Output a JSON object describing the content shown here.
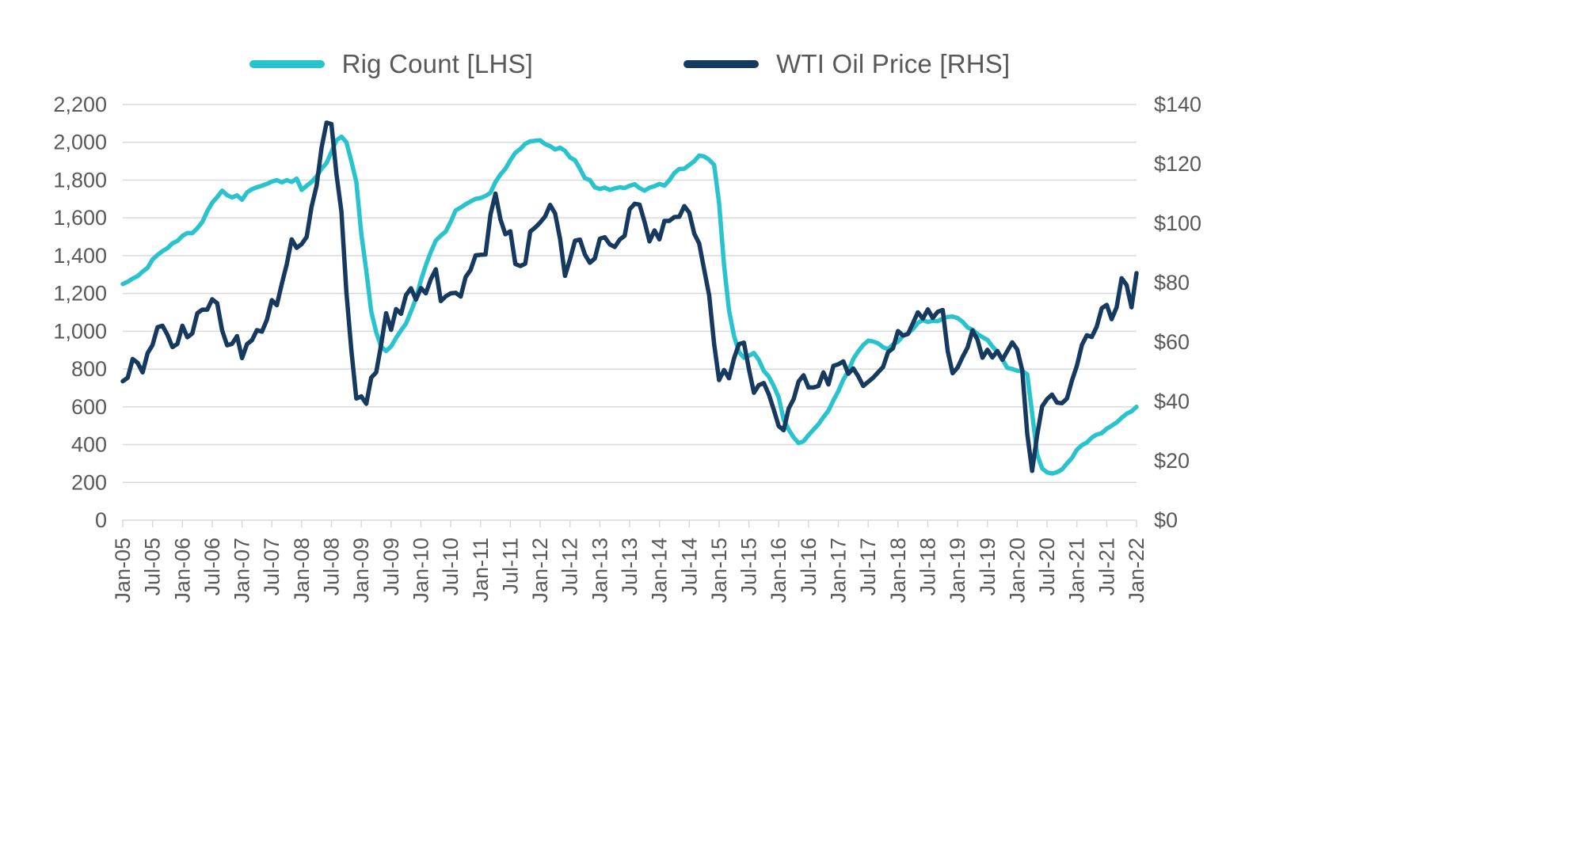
{
  "chart_data": {
    "type": "line",
    "title": "",
    "x_axis": {
      "start": "Jan-05",
      "interval": "monthly",
      "tick_every_n_points": 6,
      "tick_labels": [
        "Jan-05",
        "Jul-05",
        "Jan-06",
        "Jul-06",
        "Jan-07",
        "Jul-07",
        "Jan-08",
        "Jul-08",
        "Jan-09",
        "Jul-09",
        "Jan-10",
        "Jul-10",
        "Jan-11",
        "Jul-11",
        "Jan-12",
        "Jul-12",
        "Jan-13",
        "Jul-13",
        "Jan-14",
        "Jul-14",
        "Jan-15",
        "Jul-15",
        "Jan-16",
        "Jul-16",
        "Jan-17",
        "Jul-17",
        "Jan-18",
        "Jul-18",
        "Jan-19",
        "Jul-19",
        "Jan-20",
        "Jul-20",
        "Jan-21",
        "Jul-21",
        "Jan-22"
      ]
    },
    "left_axis": {
      "min": 0,
      "max": 2200,
      "step": 200,
      "ticks": [
        0,
        200,
        400,
        600,
        800,
        1000,
        1200,
        1400,
        1600,
        1800,
        2000,
        2200
      ],
      "tick_labels": [
        "0",
        "200",
        "400",
        "600",
        "800",
        "1,000",
        "1,200",
        "1,400",
        "1,600",
        "1,800",
        "2,000",
        "2,200"
      ]
    },
    "right_axis": {
      "min": 0,
      "max": 140,
      "step": 20,
      "ticks": [
        0,
        20,
        40,
        60,
        80,
        100,
        120,
        140
      ],
      "tick_labels": [
        "$0",
        "$20",
        "$40",
        "$60",
        "$80",
        "$100",
        "$120",
        "$140"
      ]
    },
    "grid": "horizontal",
    "legend_position": "top",
    "colors": {
      "rig_count": "#29C3CE",
      "wti": "#16395F",
      "grid": "#d9d9d9",
      "text": "#58595b"
    },
    "series": [
      {
        "name": "Rig Count [LHS]",
        "axis": "left",
        "values": [
          1250,
          1262,
          1279,
          1292,
          1316,
          1336,
          1380,
          1404,
          1424,
          1440,
          1465,
          1478,
          1505,
          1520,
          1519,
          1545,
          1578,
          1635,
          1680,
          1710,
          1744,
          1720,
          1708,
          1719,
          1696,
          1735,
          1752,
          1762,
          1770,
          1780,
          1792,
          1800,
          1788,
          1800,
          1790,
          1808,
          1748,
          1770,
          1790,
          1820,
          1860,
          1890,
          1950,
          2010,
          2030,
          2000,
          1900,
          1790,
          1515,
          1320,
          1105,
          995,
          918,
          895,
          920,
          965,
          1005,
          1040,
          1105,
          1172,
          1270,
          1350,
          1420,
          1480,
          1506,
          1528,
          1580,
          1640,
          1655,
          1672,
          1687,
          1701,
          1705,
          1716,
          1733,
          1790,
          1830,
          1860,
          1905,
          1945,
          1965,
          1992,
          2005,
          2008,
          2010,
          1990,
          1980,
          1962,
          1972,
          1955,
          1920,
          1905,
          1860,
          1810,
          1800,
          1762,
          1753,
          1760,
          1748,
          1756,
          1762,
          1758,
          1770,
          1778,
          1758,
          1744,
          1760,
          1768,
          1780,
          1770,
          1800,
          1838,
          1859,
          1860,
          1880,
          1900,
          1930,
          1925,
          1908,
          1880,
          1680,
          1350,
          1110,
          975,
          890,
          860,
          870,
          885,
          848,
          790,
          760,
          710,
          650,
          532,
          480,
          438,
          408,
          418,
          450,
          480,
          508,
          545,
          580,
          634,
          683,
          744,
          789,
          853,
          893,
          927,
          950,
          946,
          936,
          915,
          905,
          930,
          945,
          975,
          989,
          1011,
          1044,
          1059,
          1049,
          1055,
          1053,
          1067,
          1076,
          1078,
          1070,
          1050,
          1020,
          1008,
          985,
          969,
          954,
          920,
          890,
          851,
          806,
          800,
          791,
          790,
          772,
          566,
          348,
          274,
          253,
          247,
          254,
          269,
          300,
          329,
          373,
          397,
          411,
          437,
          453,
          461,
          484,
          500,
          517,
          542,
          563,
          576,
          600
        ]
      },
      {
        "name": "WTI Oil Price [RHS]",
        "axis": "right",
        "values": [
          46.8,
          48.0,
          54.3,
          53.0,
          49.8,
          56.3,
          59.0,
          65.0,
          65.5,
          62.4,
          58.3,
          59.4,
          65.5,
          61.6,
          62.9,
          69.7,
          70.9,
          70.9,
          74.4,
          73.1,
          63.9,
          58.9,
          59.4,
          62.0,
          54.6,
          59.3,
          60.6,
          64.0,
          63.5,
          67.5,
          74.1,
          72.4,
          79.6,
          86.2,
          94.6,
          91.7,
          93.0,
          95.4,
          105.6,
          112.6,
          125.4,
          133.9,
          133.4,
          116.6,
          103.9,
          76.7,
          57.4,
          41.0,
          41.7,
          39.2,
          48.0,
          49.8,
          59.2,
          69.7,
          64.1,
          71.1,
          69.5,
          75.8,
          78.1,
          74.3,
          78.2,
          76.4,
          81.2,
          84.5,
          73.8,
          75.4,
          76.4,
          76.6,
          75.3,
          81.9,
          84.3,
          89.2,
          89.4,
          89.5,
          102.9,
          110.0,
          101.3,
          96.3,
          97.3,
          86.3,
          85.6,
          86.4,
          97.2,
          98.6,
          100.3,
          102.3,
          106.2,
          103.3,
          94.7,
          82.3,
          87.9,
          94.1,
          94.5,
          89.5,
          86.7,
          88.2,
          94.8,
          95.3,
          92.9,
          92.0,
          94.5,
          95.8,
          104.7,
          106.6,
          106.3,
          100.5,
          93.9,
          97.6,
          94.6,
          100.8,
          100.8,
          102.1,
          102.2,
          105.8,
          103.6,
          96.5,
          93.2,
          84.4,
          75.8,
          59.3,
          47.2,
          50.6,
          47.8,
          54.5,
          59.3,
          59.8,
          50.9,
          42.9,
          45.5,
          46.2,
          42.4,
          37.2,
          31.7,
          30.3,
          37.6,
          40.8,
          46.7,
          48.8,
          44.7,
          44.7,
          45.2,
          49.8,
          45.7,
          52.0,
          52.5,
          53.5,
          49.3,
          51.1,
          48.5,
          45.2,
          46.6,
          48.0,
          49.8,
          51.6,
          56.6,
          57.9,
          63.7,
          62.2,
          62.7,
          66.3,
          70.0,
          67.9,
          71.0,
          68.1,
          70.2,
          70.8,
          57.0,
          49.5,
          51.4,
          55.0,
          58.2,
          63.9,
          60.8,
          54.7,
          57.4,
          54.8,
          57.0,
          54.0,
          57.0,
          59.9,
          57.5,
          50.5,
          29.2,
          16.6,
          28.6,
          38.3,
          40.8,
          42.3,
          39.6,
          39.4,
          41.0,
          47.0,
          52.0,
          59.0,
          62.3,
          61.7,
          65.2,
          71.4,
          72.5,
          67.7,
          71.7,
          81.5,
          79.2,
          71.7,
          83.2
        ]
      }
    ]
  }
}
